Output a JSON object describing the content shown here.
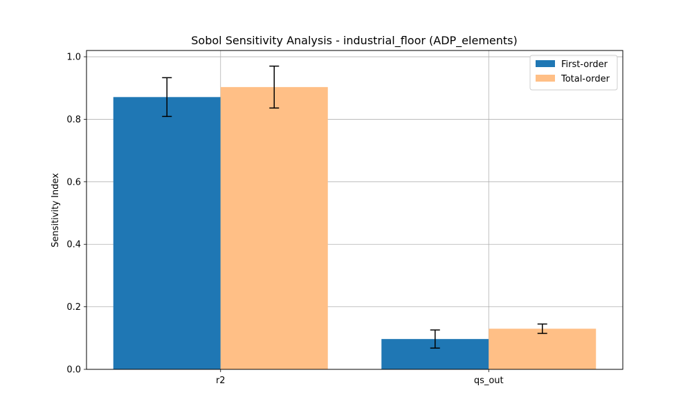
{
  "chart_data": {
    "type": "bar",
    "title": "Sobol Sensitivity Analysis - industrial_floor (ADP_elements)",
    "xlabel": "",
    "ylabel": "Sensitivity Index",
    "categories": [
      "r2",
      "qs_out"
    ],
    "ylim": [
      0,
      1.02
    ],
    "yticks": [
      "0.0",
      "0.2",
      "0.4",
      "0.6",
      "0.8",
      "1.0"
    ],
    "grid": true,
    "legend_position": "top-right",
    "series": [
      {
        "name": "First-order",
        "color": "#1f77b4",
        "values": [
          0.871,
          0.097
        ],
        "errors": [
          0.062,
          0.029
        ]
      },
      {
        "name": "Total-order",
        "color": "#ffbf86",
        "values": [
          0.903,
          0.13
        ],
        "errors": [
          0.067,
          0.015
        ]
      }
    ]
  }
}
